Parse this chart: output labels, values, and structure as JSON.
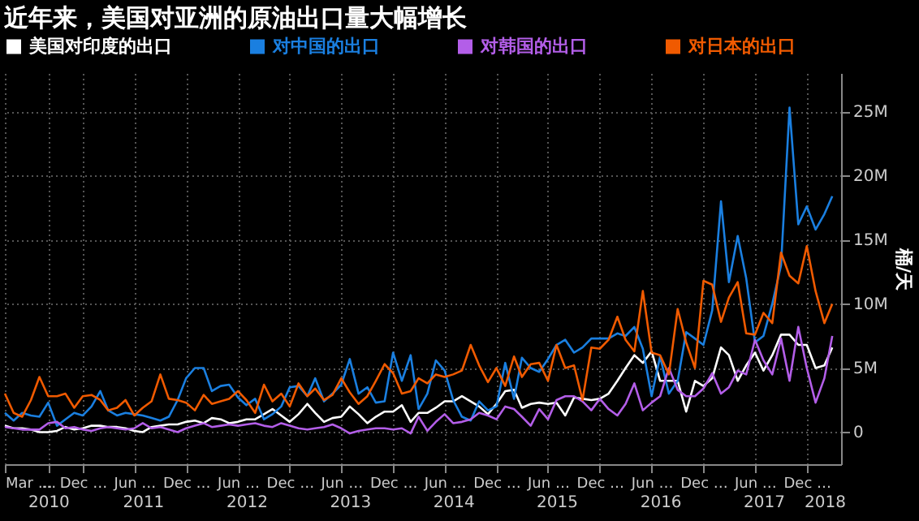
{
  "chart_data": {
    "type": "line",
    "title": "近年来，美国对亚洲的原油出口量大幅增长",
    "ylabel": "桶/天",
    "x": [
      "2010-03",
      "2010-04",
      "2010-05",
      "2010-06",
      "2010-07",
      "2010-08",
      "2010-09",
      "2010-10",
      "2010-11",
      "2010-12",
      "2011-01",
      "2011-02",
      "2011-03",
      "2011-04",
      "2011-05",
      "2011-06",
      "2011-07",
      "2011-08",
      "2011-09",
      "2011-10",
      "2011-11",
      "2011-12",
      "2012-01",
      "2012-02",
      "2012-03",
      "2012-04",
      "2012-05",
      "2012-06",
      "2012-07",
      "2012-08",
      "2012-09",
      "2012-10",
      "2012-11",
      "2012-12",
      "2013-01",
      "2013-02",
      "2013-03",
      "2013-04",
      "2013-05",
      "2013-06",
      "2013-07",
      "2013-08",
      "2013-09",
      "2013-10",
      "2013-11",
      "2013-12",
      "2014-01",
      "2014-02",
      "2014-03",
      "2014-04",
      "2014-05",
      "2014-06",
      "2014-07",
      "2014-08",
      "2014-09",
      "2014-10",
      "2014-11",
      "2014-12",
      "2015-01",
      "2015-02",
      "2015-03",
      "2015-04",
      "2015-05",
      "2015-06",
      "2015-07",
      "2015-08",
      "2015-09",
      "2015-10",
      "2015-11",
      "2015-12",
      "2016-01",
      "2016-02",
      "2016-03",
      "2016-04",
      "2016-05",
      "2016-06",
      "2016-07",
      "2016-08",
      "2016-09",
      "2016-10",
      "2016-11",
      "2016-12",
      "2017-01",
      "2017-02",
      "2017-03",
      "2017-04",
      "2017-05",
      "2017-06",
      "2017-07",
      "2017-08",
      "2017-09",
      "2017-10",
      "2017-11",
      "2017-12",
      "2018-01",
      "2018-02",
      "2018-03"
    ],
    "series": [
      {
        "name": "美国对印度的出口",
        "color": "#ffffff",
        "values": [
          0.5,
          0.3,
          0.3,
          0.2,
          0,
          0,
          0.1,
          0.4,
          0.2,
          0.3,
          0.5,
          0.5,
          0.4,
          0.4,
          0.3,
          0.1,
          0,
          0.4,
          0.5,
          0.6,
          0.6,
          0.8,
          0.9,
          0.7,
          1.1,
          1.0,
          0.7,
          0.8,
          1.0,
          1.0,
          1.4,
          1.8,
          1.3,
          0.8,
          1.4,
          2.2,
          1.5,
          0.8,
          1.1,
          1.2,
          2.0,
          1.4,
          0.7,
          1.2,
          1.6,
          1.6,
          2.1,
          0.8,
          1.5,
          1.5,
          1.9,
          2.4,
          2.4,
          2.8,
          2.4,
          2.0,
          1.4,
          2.2,
          3.2,
          3.3,
          1.9,
          2.2,
          2.3,
          2.2,
          2.3,
          1.3,
          2.7,
          2.6,
          2.5,
          2.6,
          3.0,
          4.0,
          5.0,
          6.0,
          5.4,
          6.3,
          4.0,
          4.0,
          4.0,
          1.6,
          4.0,
          3.6,
          4.2,
          6.6,
          6.0,
          4.0,
          5.2,
          6.2,
          4.8,
          6.0,
          7.6,
          7.6,
          6.8,
          6.8,
          5.0,
          5.2,
          6.6
        ]
      },
      {
        "name": "对中国的出口",
        "color": "#1a7fe0",
        "values": [
          1.5,
          0.9,
          1.5,
          1.3,
          1.2,
          2.3,
          0.5,
          1.0,
          1.5,
          1.3,
          2.0,
          3.2,
          1.7,
          1.3,
          1.5,
          1.4,
          1.3,
          1.1,
          0.9,
          1.2,
          2.5,
          4.2,
          5.0,
          5.0,
          3.2,
          3.6,
          3.7,
          2.7,
          2.1,
          2.6,
          1.0,
          1.4,
          2.0,
          3.5,
          3.6,
          2.8,
          4.2,
          2.4,
          3.0,
          3.7,
          5.7,
          3.0,
          3.5,
          2.3,
          2.4,
          6.2,
          4.0,
          6.0,
          1.8,
          3.0,
          5.6,
          4.8,
          2.5,
          1.2,
          0.9,
          2.4,
          1.7,
          2.0,
          5.4,
          2.6,
          5.8,
          5.0,
          4.7,
          5.7,
          6.8,
          7.2,
          6.2,
          6.6,
          7.3,
          7.3,
          7.3,
          7.7,
          7.5,
          8.2,
          6.5,
          2.8,
          5.9,
          3.0,
          4.0,
          7.8,
          7.3,
          6.8,
          9.5,
          18.0,
          11.7,
          15.3,
          12.0,
          7.0,
          7.5,
          10.0,
          13.0,
          25.3,
          16.2,
          17.6,
          15.8,
          17.0,
          18.4
        ]
      },
      {
        "name": "对韩国的出口",
        "color": "#b35ee8",
        "values": [
          0.4,
          0.3,
          0.2,
          0.2,
          0.2,
          0.7,
          0.8,
          0.3,
          0.4,
          0.2,
          0.1,
          0.3,
          0.4,
          0.3,
          0.2,
          0.3,
          0.7,
          0.3,
          0.4,
          0.2,
          0,
          0.3,
          0.5,
          0.7,
          0.4,
          0.5,
          0.6,
          0.5,
          0.6,
          0.7,
          0.5,
          0.4,
          0.7,
          0.5,
          0.3,
          0.2,
          0.3,
          0.4,
          0.6,
          0.3,
          -0.1,
          0.1,
          0.2,
          0.3,
          0.3,
          0.2,
          0.3,
          -0.1,
          1.2,
          0.1,
          0.8,
          1.4,
          0.7,
          0.8,
          1.0,
          1.5,
          1.3,
          1.0,
          2.0,
          1.8,
          1.2,
          0.5,
          1.8,
          1.0,
          2.5,
          2.8,
          2.8,
          2.4,
          1.7,
          2.6,
          1.8,
          1.3,
          2.2,
          3.8,
          1.7,
          2.3,
          2.8,
          5.0,
          3.3,
          2.8,
          2.8,
          3.4,
          4.6,
          3.0,
          3.5,
          4.8,
          4.5,
          7.2,
          5.6,
          4.5,
          7.3,
          4.0,
          8.2,
          5.0,
          2.3,
          4.2,
          7.5
        ]
      },
      {
        "name": "对日本的出口",
        "color": "#f05a00",
        "values": [
          3.0,
          1.5,
          1.2,
          2.5,
          4.3,
          2.8,
          2.8,
          3.0,
          1.9,
          2.8,
          2.9,
          2.5,
          1.7,
          1.9,
          2.5,
          1.3,
          1.9,
          2.4,
          4.5,
          2.6,
          2.5,
          2.3,
          1.7,
          2.9,
          2.2,
          2.4,
          2.6,
          3.2,
          2.5,
          1.5,
          3.7,
          2.4,
          3.0,
          2.0,
          3.8,
          2.8,
          3.4,
          2.5,
          2.9,
          4.2,
          3.1,
          2.2,
          2.8,
          4.0,
          5.3,
          4.6,
          3.0,
          3.2,
          4.2,
          3.8,
          4.5,
          4.3,
          4.5,
          4.8,
          6.8,
          5.2,
          3.9,
          5.0,
          3.6,
          5.9,
          4.3,
          5.3,
          5.4,
          4.0,
          6.8,
          5.0,
          5.2,
          2.5,
          6.6,
          6.5,
          7.2,
          9.0,
          7.2,
          6.3,
          11.0,
          6.2,
          6.0,
          4.5,
          9.6,
          7.0,
          5.0,
          11.8,
          11.5,
          8.6,
          10.5,
          11.7,
          7.7,
          7.6,
          9.3,
          8.5,
          14.0,
          12.2,
          11.6,
          14.5,
          11.0,
          8.5,
          10.0
        ]
      }
    ],
    "xlim": [
      "2010-03",
      "2018-04"
    ],
    "xticks": [
      {
        "value": "2010-03",
        "label": "Mar …"
      },
      {
        "value": "2010-08",
        "label": "…"
      },
      {
        "value": "2010-12",
        "label": "Dec …"
      },
      {
        "value": "2011-06",
        "label": "Jun …"
      },
      {
        "value": "2011-12",
        "label": "Dec …"
      },
      {
        "value": "2012-06",
        "label": "Jun …"
      },
      {
        "value": "2012-12",
        "label": "Dec …"
      },
      {
        "value": "2013-06",
        "label": "Jun …"
      },
      {
        "value": "2013-12",
        "label": "Dec …"
      },
      {
        "value": "2014-06",
        "label": "Jun …"
      },
      {
        "value": "2014-12",
        "label": "Dec …"
      },
      {
        "value": "2015-06",
        "label": "Jun …"
      },
      {
        "value": "2015-12",
        "label": "Dec …"
      },
      {
        "value": "2016-06",
        "label": "Jun …"
      },
      {
        "value": "2016-12",
        "label": "Dec …"
      },
      {
        "value": "2017-06",
        "label": "Jun …"
      },
      {
        "value": "2017-12",
        "label": "Dec …"
      }
    ],
    "x2lim": [
      "2010-03",
      "2018-04"
    ],
    "x2ticks": [
      {
        "value": "2010-08",
        "label": "2010"
      },
      {
        "value": "2011-07",
        "label": "2011"
      },
      {
        "value": "2012-07",
        "label": "2012"
      },
      {
        "value": "2013-07",
        "label": "2013"
      },
      {
        "value": "2014-07",
        "label": "2014"
      },
      {
        "value": "2015-07",
        "label": "2015"
      },
      {
        "value": "2016-07",
        "label": "2016"
      },
      {
        "value": "2017-07",
        "label": "2017"
      },
      {
        "value": "2018-02",
        "label": "2018"
      }
    ],
    "ylim": [
      -2.5,
      28
    ],
    "yticks": [
      {
        "value": 0,
        "label": "0"
      },
      {
        "value": 5,
        "label": "5M"
      },
      {
        "value": 10,
        "label": "10M"
      },
      {
        "value": 15,
        "label": "15M"
      },
      {
        "value": 20,
        "label": "20M"
      },
      {
        "value": 25,
        "label": "25M"
      }
    ],
    "grid": true,
    "legend": "top",
    "marker": "none",
    "line_style": "solid"
  }
}
